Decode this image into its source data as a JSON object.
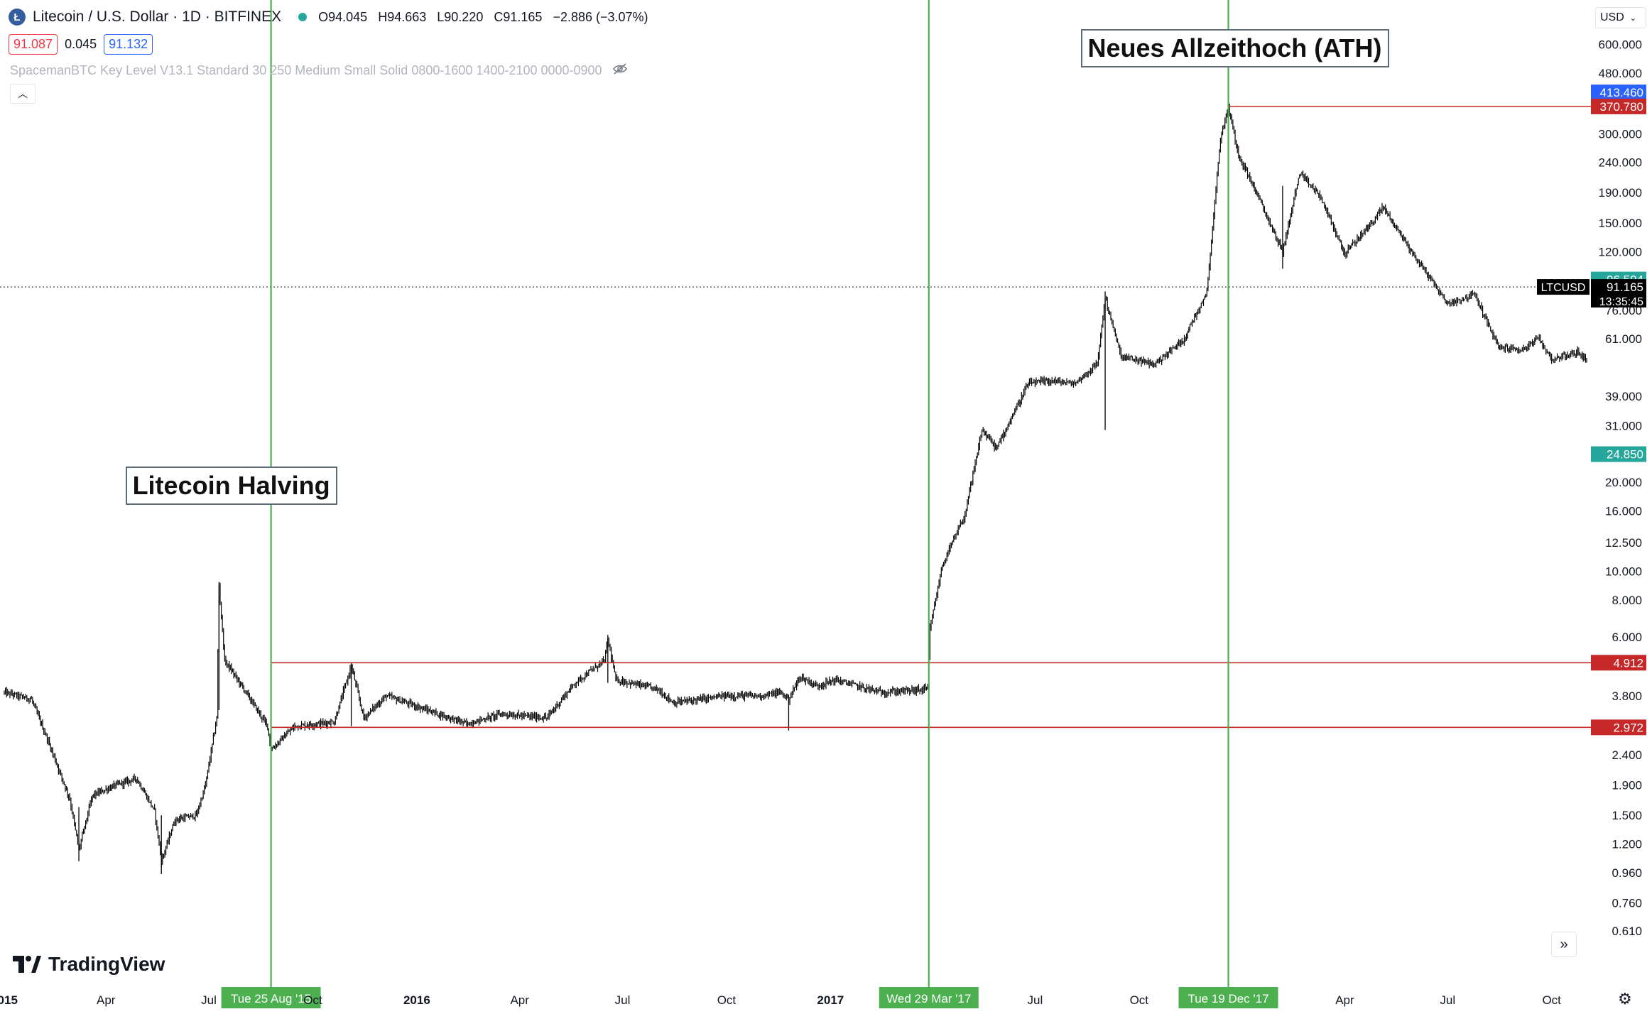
{
  "header": {
    "symbol_icon": "Ł",
    "title": "Litecoin / U.S. Dollar · 1D · BITFINEX",
    "o_label": "O",
    "o_value": "94.045",
    "h_label": "H",
    "h_value": "94.663",
    "l_label": "L",
    "l_value": "90.220",
    "c_label": "C",
    "c_value": "91.165",
    "change": "−2.886 (−3.07%)",
    "bid": "91.087",
    "spread": "0.045",
    "ask": "91.132"
  },
  "indicator": {
    "label": "SpacemanBTC Key Level V13.1 Standard 30 250 Medium Small Solid 0800-1600 1400-2100 0000-0900",
    "icon": "eye-off-icon"
  },
  "currency": "USD",
  "brand": "TradingView",
  "colors": {
    "candles": "#000000",
    "halving_lines": "#4caf50",
    "level_lines": "#c62828",
    "last_price_label": "#000000",
    "green_label": "#26a69a",
    "blue_label": "#2962ff",
    "red_label": "#c62828"
  },
  "chart_data": {
    "type": "candlestick",
    "scale": "log",
    "ylim": [
      0.55,
      680
    ],
    "y_ticks": [
      "600.000",
      "480.000",
      "300.000",
      "240.000",
      "190.000",
      "150.000",
      "120.000",
      "76.000",
      "61.000",
      "39.000",
      "31.000",
      "20.000",
      "16.000",
      "12.500",
      "10.000",
      "8.000",
      "6.000",
      "3.800",
      "2.400",
      "1.900",
      "1.500",
      "1.200",
      "0.960",
      "0.760",
      "0.610"
    ],
    "x_ticks": [
      "2015",
      "Apr",
      "Jul",
      "Oct",
      "2016",
      "Apr",
      "Jul",
      "Oct",
      "2017",
      "Jul",
      "Oct",
      "Apr",
      "Jul",
      "Oct"
    ],
    "x_range": [
      "2015-01-01",
      "2018-11-01"
    ],
    "price_path": [
      [
        "2015-01-01",
        3.9
      ],
      [
        "2015-01-25",
        3.7
      ],
      [
        "2015-02-10",
        2.6
      ],
      [
        "2015-02-28",
        1.7
      ],
      [
        "2015-03-08",
        1.15
      ],
      [
        "2015-03-20",
        1.75
      ],
      [
        "2015-04-10",
        1.9
      ],
      [
        "2015-04-28",
        2.0
      ],
      [
        "2015-05-14",
        1.55
      ],
      [
        "2015-05-20",
        1.05
      ],
      [
        "2015-06-01",
        1.45
      ],
      [
        "2015-06-20",
        1.5
      ],
      [
        "2015-06-28",
        1.9
      ],
      [
        "2015-07-08",
        3.2
      ],
      [
        "2015-07-10",
        8.9
      ],
      [
        "2015-07-15",
        5.0
      ],
      [
        "2015-08-01",
        4.0
      ],
      [
        "2015-08-22",
        3.0
      ],
      [
        "2015-08-25",
        2.5
      ],
      [
        "2015-09-15",
        3.0
      ],
      [
        "2015-10-20",
        3.1
      ],
      [
        "2015-11-04",
        4.8
      ],
      [
        "2015-11-15",
        3.2
      ],
      [
        "2015-12-05",
        3.8
      ],
      [
        "2016-01-10",
        3.4
      ],
      [
        "2016-02-15",
        3.05
      ],
      [
        "2016-03-15",
        3.3
      ],
      [
        "2016-04-25",
        3.2
      ],
      [
        "2016-05-20",
        4.2
      ],
      [
        "2016-06-15",
        5.0
      ],
      [
        "2016-06-18",
        5.9
      ],
      [
        "2016-06-25",
        4.3
      ],
      [
        "2016-08-01",
        4.0
      ],
      [
        "2016-08-15",
        3.6
      ],
      [
        "2016-10-01",
        3.8
      ],
      [
        "2016-11-01",
        3.8
      ],
      [
        "2016-11-18",
        3.9
      ],
      [
        "2016-11-25",
        3.7
      ],
      [
        "2016-12-05",
        4.4
      ],
      [
        "2016-12-20",
        4.1
      ],
      [
        "2017-01-05",
        4.3
      ],
      [
        "2017-02-15",
        3.9
      ],
      [
        "2017-03-28",
        4.0
      ],
      [
        "2017-03-30",
        6.4
      ],
      [
        "2017-04-10",
        10.5
      ],
      [
        "2017-04-30",
        15.5
      ],
      [
        "2017-05-15",
        30.0
      ],
      [
        "2017-05-28",
        26.0
      ],
      [
        "2017-06-10",
        33.0
      ],
      [
        "2017-06-25",
        43.0
      ],
      [
        "2017-07-15",
        44.0
      ],
      [
        "2017-08-05",
        43.0
      ],
      [
        "2017-08-25",
        50.0
      ],
      [
        "2017-09-01",
        84.0
      ],
      [
        "2017-09-15",
        53.0
      ],
      [
        "2017-10-15",
        50.0
      ],
      [
        "2017-11-10",
        61.0
      ],
      [
        "2017-11-30",
        88.0
      ],
      [
        "2017-12-12",
        290.0
      ],
      [
        "2017-12-19",
        370.0
      ],
      [
        "2017-12-28",
        255.0
      ],
      [
        "2018-01-10",
        200.0
      ],
      [
        "2018-02-05",
        120.0
      ],
      [
        "2018-02-20",
        220.0
      ],
      [
        "2018-03-10",
        185.0
      ],
      [
        "2018-04-01",
        118.0
      ],
      [
        "2018-04-25",
        150.0
      ],
      [
        "2018-05-05",
        170.0
      ],
      [
        "2018-06-01",
        117.0
      ],
      [
        "2018-07-01",
        80.0
      ],
      [
        "2018-07-25",
        86.0
      ],
      [
        "2018-08-15",
        57.0
      ],
      [
        "2018-09-05",
        56.0
      ],
      [
        "2018-09-20",
        61.0
      ],
      [
        "2018-10-01",
        52.0
      ],
      [
        "2018-10-25",
        55.0
      ],
      [
        "2018-11-01",
        51.0
      ]
    ],
    "horizontal_levels": [
      {
        "value": 370.78,
        "start": "2017-12-19"
      },
      {
        "value": 4.912,
        "start": "2015-08-25"
      },
      {
        "value": 2.972,
        "start": "2015-08-25"
      }
    ],
    "vertical_markers": [
      {
        "date": "2015-08-25",
        "label": "Tue 25 Aug '15"
      },
      {
        "date": "2017-03-29",
        "label": "Wed 29 Mar '17"
      },
      {
        "date": "2017-12-19",
        "label": "Tue 19 Dec '17"
      }
    ],
    "price_labels": [
      {
        "text": "413.460",
        "value": 413.46,
        "color": "blue"
      },
      {
        "text": "370.780",
        "value": 370.78,
        "color": "red"
      },
      {
        "text": "96.594",
        "value": 96.594,
        "color": "green"
      },
      {
        "text": "24.850",
        "value": 24.85,
        "color": "green"
      },
      {
        "text": "4.912",
        "value": 4.912,
        "color": "red"
      },
      {
        "text": "2.972",
        "value": 2.972,
        "color": "red"
      }
    ],
    "last_price": {
      "symbol": "LTCUSD",
      "value": "91.165",
      "countdown": "13:35:45",
      "y": 91.165
    },
    "annotations": [
      {
        "text": "Litecoin Halving",
        "date": "2015-08-25",
        "value": 20.0
      },
      {
        "text": "Neues Allzeithoch (ATH)",
        "date": "2017-12-19",
        "value": 600.0
      }
    ]
  }
}
